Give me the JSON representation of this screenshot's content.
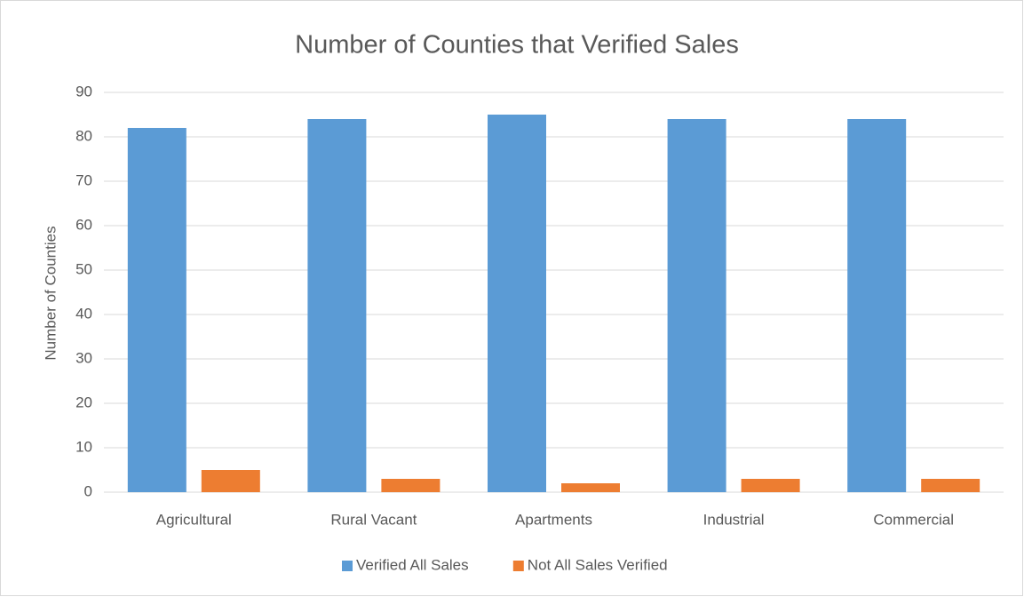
{
  "chart_data": {
    "type": "bar",
    "title": "Number of Counties that Verified Sales",
    "y_label": "Number of Counties",
    "categories": [
      "Agricultural",
      "Rural Vacant",
      "Apartments",
      "Industrial",
      "Commercial"
    ],
    "series": [
      {
        "name": "Verified All Sales",
        "color": "#5b9bd5",
        "values": [
          82,
          84,
          85,
          84,
          84
        ]
      },
      {
        "name": "Not All Sales Verified",
        "color": "#ed7d31",
        "values": [
          5,
          3,
          2,
          3,
          3
        ]
      }
    ],
    "ylim": [
      0,
      90
    ],
    "yticks": [
      0,
      10,
      20,
      30,
      40,
      50,
      60,
      70,
      80,
      90
    ],
    "grid": true,
    "legend": "bottom"
  }
}
